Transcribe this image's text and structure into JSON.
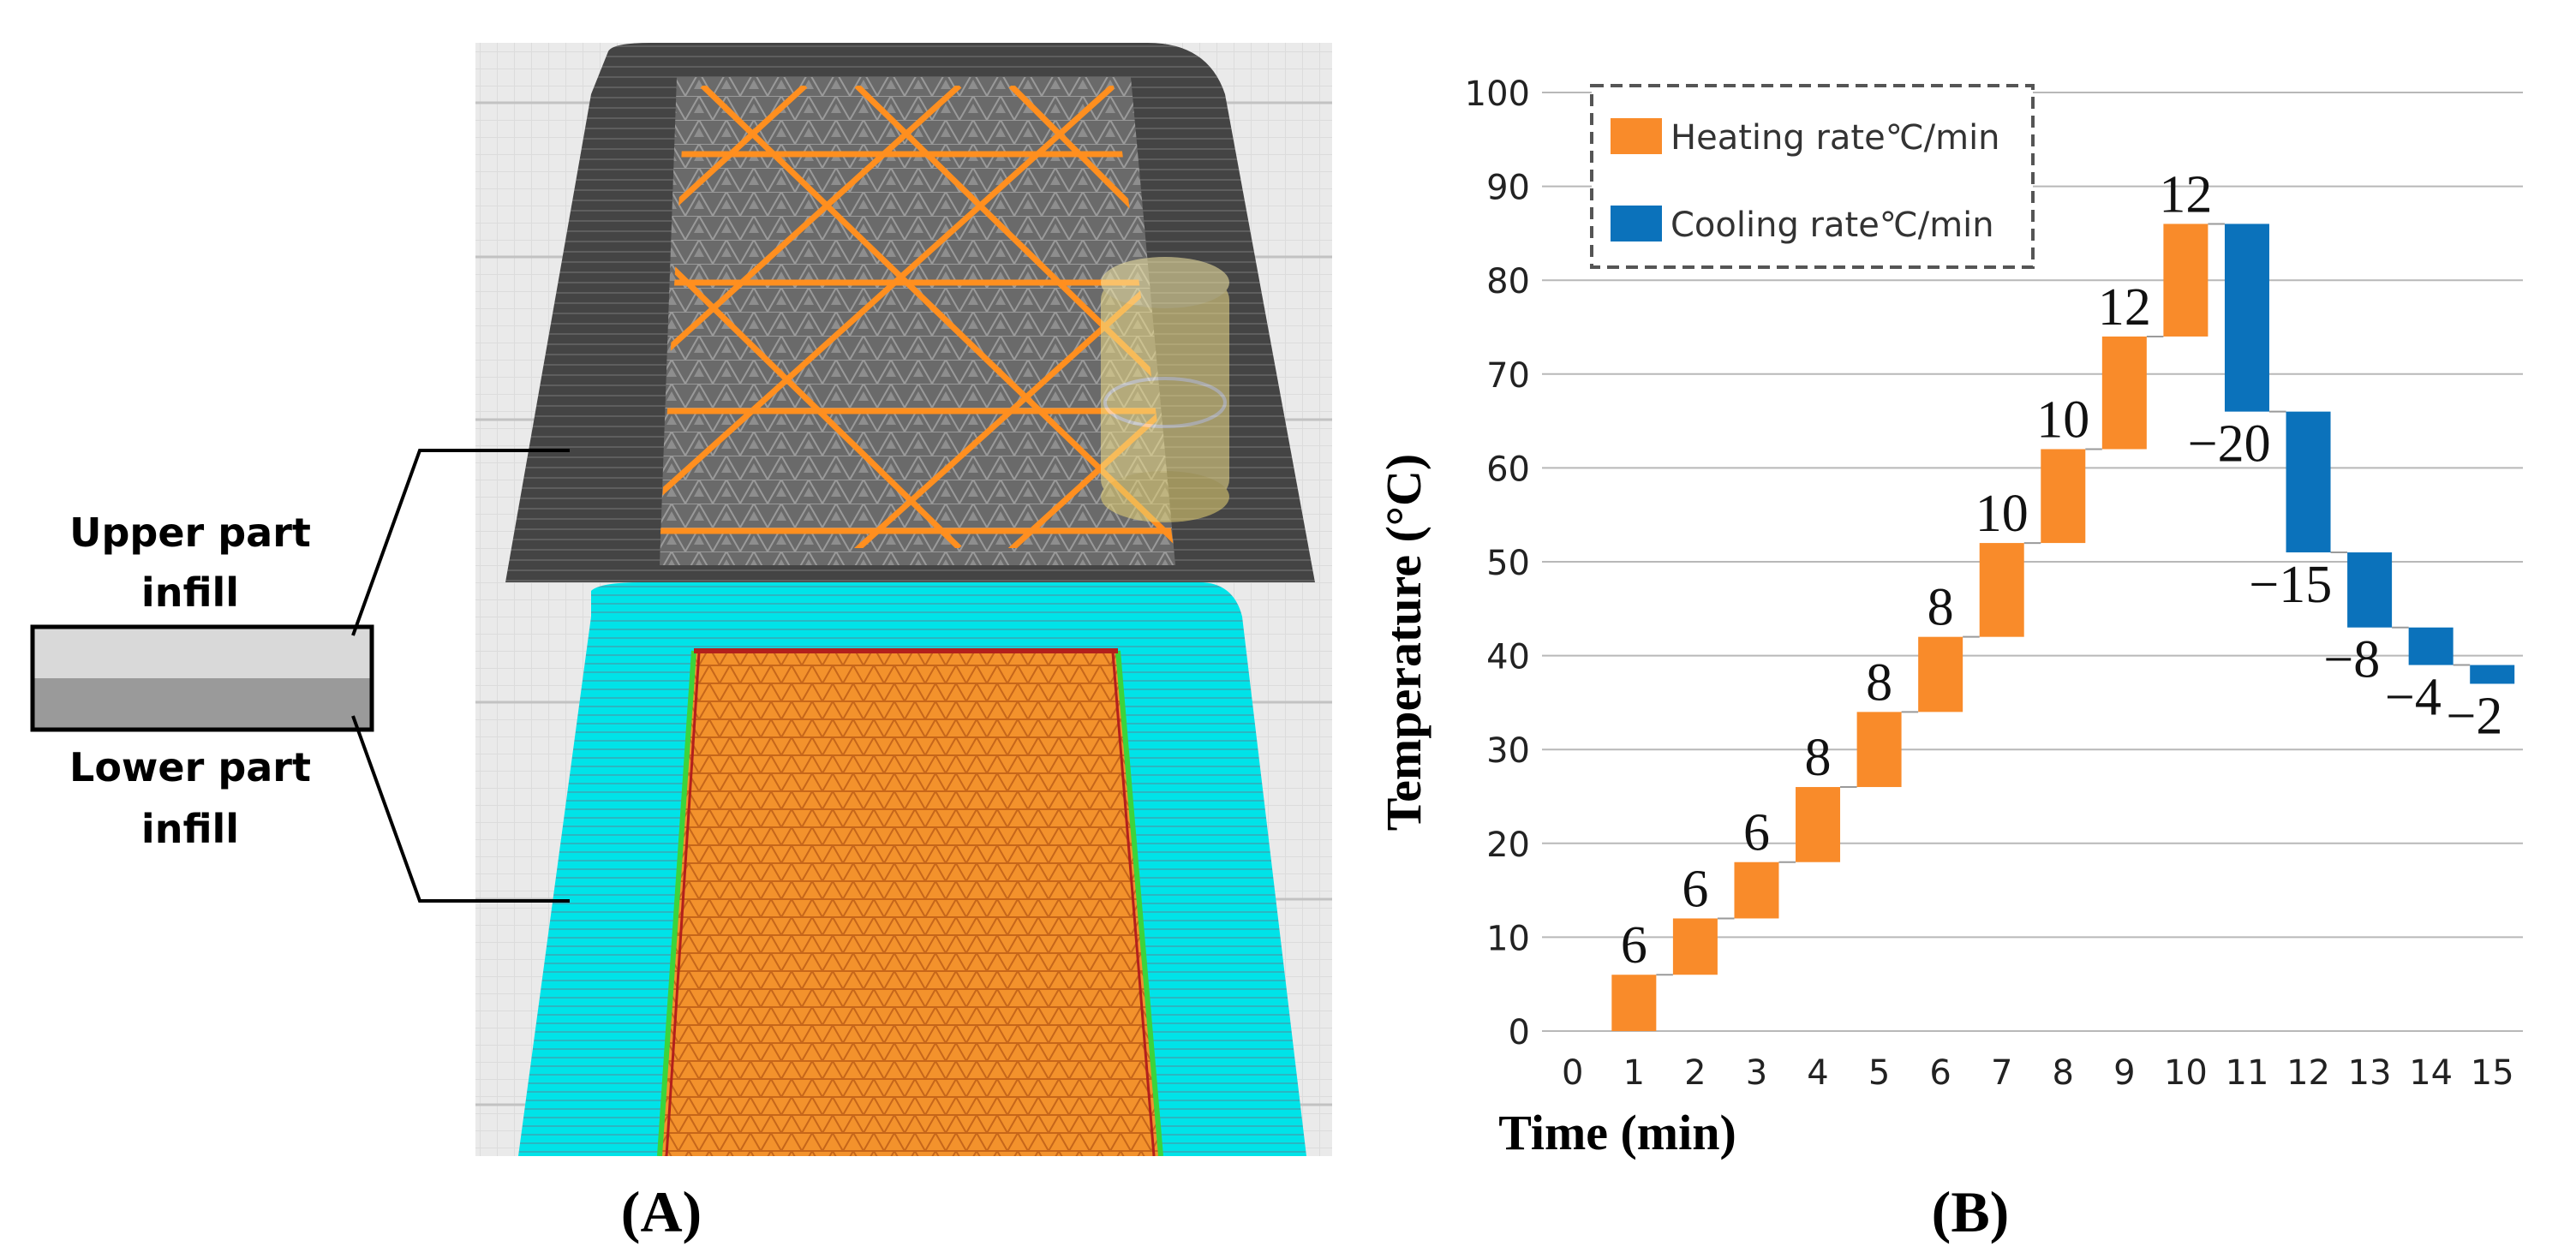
{
  "panel_a": {
    "label": "(A)",
    "upper_label": [
      "Upper part",
      "infill"
    ],
    "lower_label": [
      "Lower part",
      "infill"
    ]
  },
  "panel_b": {
    "label": "(B)"
  },
  "colors": {
    "heating": "#f98b2a",
    "cooling": "#0b72bb",
    "cyan": "#00e8ec",
    "dark_print": "#4a4a4a",
    "grid": "#b8b8b8",
    "upper_block": "#d9d9d9",
    "lower_block": "#9a9a9a"
  },
  "chart_data": {
    "type": "bar",
    "subtype": "waterfall",
    "title": "",
    "xlabel": "Time (min)",
    "ylabel": "Temperature (°C)",
    "ylim": [
      0,
      100
    ],
    "yticks": [
      0,
      10,
      20,
      30,
      40,
      50,
      60,
      70,
      80,
      90,
      100
    ],
    "xticks": [
      0,
      1,
      2,
      3,
      4,
      5,
      6,
      7,
      8,
      9,
      10,
      11,
      12,
      13,
      14,
      15
    ],
    "gridlines": true,
    "legend": {
      "position": "top-left",
      "entries": [
        {
          "name": "Heating rate℃/min",
          "color": "#f98b2a"
        },
        {
          "name": "Cooling rate℃/min",
          "color": "#0b72bb"
        }
      ]
    },
    "series": [
      {
        "name": "Heating rate℃/min",
        "points": [
          {
            "x": 1,
            "start": 0,
            "end": 6,
            "label": "6"
          },
          {
            "x": 2,
            "start": 6,
            "end": 12,
            "label": "6"
          },
          {
            "x": 3,
            "start": 12,
            "end": 18,
            "label": "6"
          },
          {
            "x": 4,
            "start": 18,
            "end": 26,
            "label": "8"
          },
          {
            "x": 5,
            "start": 26,
            "end": 34,
            "label": "8"
          },
          {
            "x": 6,
            "start": 34,
            "end": 42,
            "label": "8"
          },
          {
            "x": 7,
            "start": 42,
            "end": 52,
            "label": "10"
          },
          {
            "x": 8,
            "start": 52,
            "end": 62,
            "label": "10"
          },
          {
            "x": 9,
            "start": 62,
            "end": 74,
            "label": "12"
          },
          {
            "x": 10,
            "start": 74,
            "end": 86,
            "label": "12"
          }
        ]
      },
      {
        "name": "Cooling rate℃/min",
        "points": [
          {
            "x": 11,
            "start": 86,
            "end": 66,
            "label": "−20"
          },
          {
            "x": 12,
            "start": 66,
            "end": 51,
            "label": "−15"
          },
          {
            "x": 13,
            "start": 51,
            "end": 43,
            "label": "−8"
          },
          {
            "x": 14,
            "start": 43,
            "end": 39,
            "label": "−4"
          },
          {
            "x": 15,
            "start": 39,
            "end": 37,
            "label": "−2"
          }
        ]
      }
    ]
  }
}
